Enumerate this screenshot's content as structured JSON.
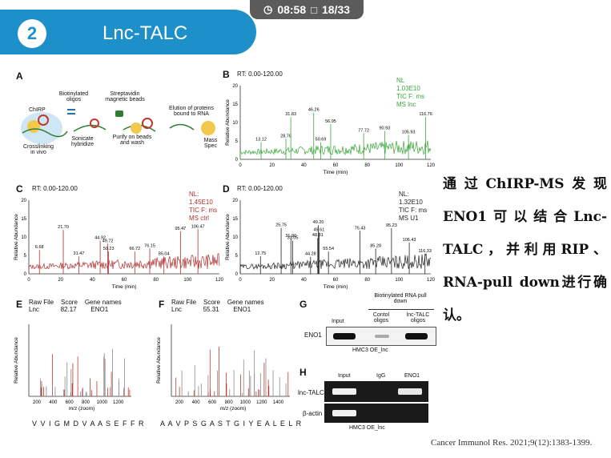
{
  "status": {
    "time": "08:58",
    "page": "18/33"
  },
  "header": {
    "number": "2",
    "title": "Lnc-TALC"
  },
  "panelA": {
    "letter": "A",
    "labels": [
      "Biotinylated oligos",
      "Streptavidin magnetic beads",
      "ChIRP",
      "Crosslinking in vivo",
      "Sonicate hybridize",
      "Purify on beads and wash",
      "Elution of proteins bound to RNA",
      "Mass Spec"
    ]
  },
  "panelB": {
    "letter": "B",
    "rt": "RT: 0.00-120.00",
    "legend": [
      "NL",
      "1.03E10",
      "TIC F: ms",
      "MS lnc"
    ],
    "peaks": [
      "13.12",
      "28.76",
      "31.83",
      "46.26",
      "50.69",
      "56.95",
      "77.72",
      "90.93",
      "105.93",
      "116.76"
    ],
    "color": "#3aa63a"
  },
  "panelC": {
    "letter": "C",
    "rt": "RT: 0.00-120.00",
    "legend": [
      "NL:",
      "1.45E10",
      "TIC F: ms",
      "MS ctrl"
    ],
    "peaks": [
      "6.68",
      "21.70",
      "31.47",
      "44.92",
      "49.72",
      "50.23",
      "66.72",
      "76.15",
      "85.04",
      "95.47",
      "106.47"
    ],
    "color": "#b03030"
  },
  "panelD": {
    "letter": "D",
    "rt": "RT: 0.00-120.00",
    "legend": [
      "NL:",
      "1.32E10",
      "TIC F: ms",
      "MS U1"
    ],
    "peaks": [
      "12.75",
      "25.75",
      "31.90",
      "33.05",
      "44.28",
      "48.81",
      "49.20",
      "49.61",
      "55.54",
      "75.43",
      "85.28",
      "95.23",
      "106.43",
      "116.33"
    ],
    "color": "#222222"
  },
  "axes": {
    "ylabel": "Relative Abundance",
    "xlabel": "Time (min)",
    "yticks": [
      "0",
      "5",
      "10",
      "15",
      "20"
    ],
    "xticks": [
      "0",
      "20",
      "40",
      "60",
      "80",
      "100",
      "120"
    ]
  },
  "panelE": {
    "letter": "E",
    "header": [
      "Raw File",
      "Score",
      "Gene names"
    ],
    "values": [
      "Lnc",
      "82.17",
      "ENO1"
    ],
    "sequence": "V V I G M D V A A S E F F R",
    "xlabel": "m/z (zoom)",
    "xticks": [
      "200",
      "400",
      "600",
      "800",
      "1000",
      "1200"
    ]
  },
  "panelF": {
    "letter": "F",
    "header": [
      "Raw File",
      "Score",
      "Gene names"
    ],
    "values": [
      "Lnc",
      "55.31",
      "ENO1"
    ],
    "sequence": "A A V P S G A S T G I Y E A L E L R",
    "xlabel": "m/z (zoom)",
    "xticks": [
      "200",
      "400",
      "600",
      "800",
      "1000",
      "1200",
      "1400"
    ]
  },
  "panelG": {
    "letter": "G",
    "title": "Biotinylated RNA pull down",
    "cols": [
      "Input",
      "Contol oligos",
      "lnc-TALC oligos"
    ],
    "row": "ENO1",
    "cell": "HMC3 OE_lnc"
  },
  "panelH": {
    "letter": "H",
    "cols": [
      "Input",
      "IgG",
      "ENO1"
    ],
    "rows": [
      "lnc-TALC",
      "β-actin"
    ],
    "cell": "HMC3 OE_lnc"
  },
  "body_text": "通过ChIRP-MS发现ENO1可以结合Lnc-TALC，并利用RIP、RNA-pull down进行确认。",
  "citation": "Cancer Immunol Res. 2021;9(12):1383-1399."
}
